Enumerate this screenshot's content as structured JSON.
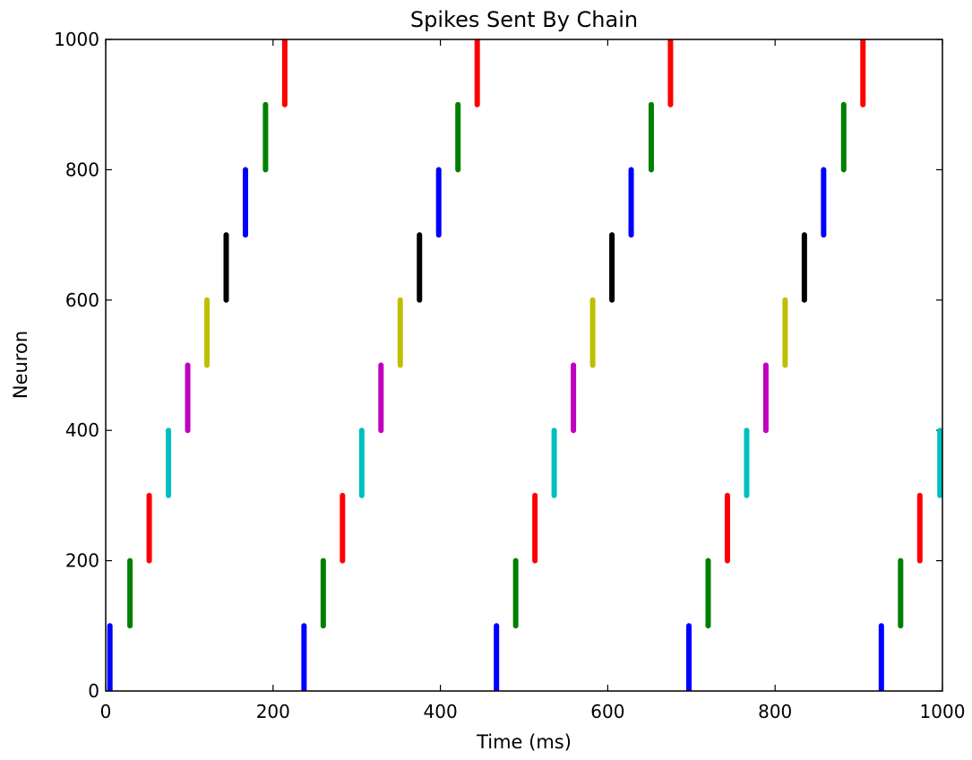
{
  "chart_data": {
    "type": "scatter",
    "title": "Spikes Sent By Chain",
    "xlabel": "Time (ms)",
    "ylabel": "Neuron",
    "xlim": [
      0,
      1000
    ],
    "ylim": [
      0,
      1000
    ],
    "xticks": [
      "0",
      "200",
      "400",
      "600",
      "800",
      "1000"
    ],
    "yticks": [
      "0",
      "200",
      "400",
      "600",
      "800",
      "1000"
    ],
    "grid": false,
    "legend": "none",
    "colors": {
      "blue": "#0000ff",
      "green": "#008000",
      "red": "#ff0000",
      "cyan": "#00bfbf",
      "magenta": "#bf00bf",
      "yellow": "#bfbf00",
      "black": "#000000"
    },
    "spike_groups": [
      {
        "time": 5,
        "neurons": [
          0,
          100
        ],
        "color": "blue"
      },
      {
        "time": 29,
        "neurons": [
          100,
          200
        ],
        "color": "green"
      },
      {
        "time": 52,
        "neurons": [
          200,
          300
        ],
        "color": "red"
      },
      {
        "time": 75,
        "neurons": [
          300,
          400
        ],
        "color": "cyan"
      },
      {
        "time": 98,
        "neurons": [
          400,
          500
        ],
        "color": "magenta"
      },
      {
        "time": 121,
        "neurons": [
          500,
          600
        ],
        "color": "yellow"
      },
      {
        "time": 144,
        "neurons": [
          600,
          700
        ],
        "color": "black"
      },
      {
        "time": 167,
        "neurons": [
          700,
          800
        ],
        "color": "blue"
      },
      {
        "time": 191,
        "neurons": [
          800,
          900
        ],
        "color": "green"
      },
      {
        "time": 214,
        "neurons": [
          900,
          1000
        ],
        "color": "red"
      },
      {
        "time": 237,
        "neurons": [
          0,
          100
        ],
        "color": "blue"
      },
      {
        "time": 260,
        "neurons": [
          100,
          200
        ],
        "color": "green"
      },
      {
        "time": 283,
        "neurons": [
          200,
          300
        ],
        "color": "red"
      },
      {
        "time": 306,
        "neurons": [
          300,
          400
        ],
        "color": "cyan"
      },
      {
        "time": 329,
        "neurons": [
          400,
          500
        ],
        "color": "magenta"
      },
      {
        "time": 352,
        "neurons": [
          500,
          600
        ],
        "color": "yellow"
      },
      {
        "time": 375,
        "neurons": [
          600,
          700
        ],
        "color": "black"
      },
      {
        "time": 398,
        "neurons": [
          700,
          800
        ],
        "color": "blue"
      },
      {
        "time": 421,
        "neurons": [
          800,
          900
        ],
        "color": "green"
      },
      {
        "time": 444,
        "neurons": [
          900,
          1000
        ],
        "color": "red"
      },
      {
        "time": 467,
        "neurons": [
          0,
          100
        ],
        "color": "blue"
      },
      {
        "time": 490,
        "neurons": [
          100,
          200
        ],
        "color": "green"
      },
      {
        "time": 513,
        "neurons": [
          200,
          300
        ],
        "color": "red"
      },
      {
        "time": 536,
        "neurons": [
          300,
          400
        ],
        "color": "cyan"
      },
      {
        "time": 559,
        "neurons": [
          400,
          500
        ],
        "color": "magenta"
      },
      {
        "time": 582,
        "neurons": [
          500,
          600
        ],
        "color": "yellow"
      },
      {
        "time": 605,
        "neurons": [
          600,
          700
        ],
        "color": "black"
      },
      {
        "time": 628,
        "neurons": [
          700,
          800
        ],
        "color": "blue"
      },
      {
        "time": 652,
        "neurons": [
          800,
          900
        ],
        "color": "green"
      },
      {
        "time": 675,
        "neurons": [
          900,
          1000
        ],
        "color": "red"
      },
      {
        "time": 697,
        "neurons": [
          0,
          100
        ],
        "color": "blue"
      },
      {
        "time": 720,
        "neurons": [
          100,
          200
        ],
        "color": "green"
      },
      {
        "time": 743,
        "neurons": [
          200,
          300
        ],
        "color": "red"
      },
      {
        "time": 766,
        "neurons": [
          300,
          400
        ],
        "color": "cyan"
      },
      {
        "time": 789,
        "neurons": [
          400,
          500
        ],
        "color": "magenta"
      },
      {
        "time": 812,
        "neurons": [
          500,
          600
        ],
        "color": "yellow"
      },
      {
        "time": 835,
        "neurons": [
          600,
          700
        ],
        "color": "black"
      },
      {
        "time": 858,
        "neurons": [
          700,
          800
        ],
        "color": "blue"
      },
      {
        "time": 882,
        "neurons": [
          800,
          900
        ],
        "color": "green"
      },
      {
        "time": 905,
        "neurons": [
          900,
          1000
        ],
        "color": "red"
      },
      {
        "time": 927,
        "neurons": [
          0,
          100
        ],
        "color": "blue"
      },
      {
        "time": 950,
        "neurons": [
          100,
          200
        ],
        "color": "green"
      },
      {
        "time": 973,
        "neurons": [
          200,
          300
        ],
        "color": "red"
      },
      {
        "time": 997,
        "neurons": [
          300,
          400
        ],
        "color": "cyan"
      }
    ]
  }
}
